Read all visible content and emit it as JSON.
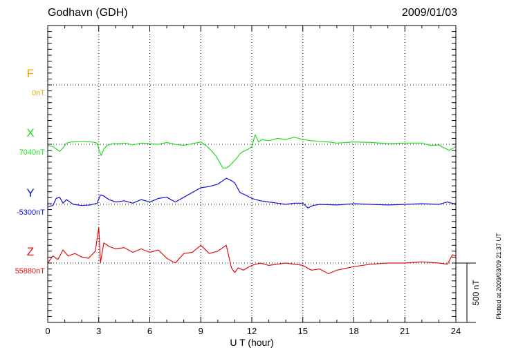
{
  "header": {
    "station": "Godhavn (GDH)",
    "date": "2009/01/03"
  },
  "footer": {
    "plotted": "Plotted at 2009/03/09 21:37 UT"
  },
  "chart_data": {
    "type": "line",
    "xlabel": "U T (hour)",
    "xlim": [
      0,
      24
    ],
    "xticks": [
      "0",
      "3",
      "6",
      "9",
      "12",
      "15",
      "18",
      "21",
      "24"
    ],
    "scale_bar": {
      "label": "500 nT",
      "value_nT": 500
    },
    "grid": true,
    "series": [
      {
        "name": "F",
        "baseline_label": "0nT",
        "color": "#f0a800",
        "values": []
      },
      {
        "name": "X",
        "baseline_label": "7040nT",
        "color": "#22dd22",
        "x": [
          0,
          0.3,
          0.5,
          0.7,
          0.9,
          1.1,
          1.4,
          1.8,
          2.2,
          2.6,
          2.9,
          3.05,
          3.15,
          3.3,
          3.5,
          3.8,
          4.2,
          4.6,
          5.0,
          5.5,
          6.0,
          6.5,
          7.0,
          7.5,
          8.0,
          8.5,
          9.0,
          9.3,
          9.6,
          9.9,
          10.1,
          10.3,
          10.5,
          10.7,
          10.9,
          11.1,
          11.3,
          11.5,
          11.8,
          12.0,
          12.2,
          12.4,
          12.6,
          13.0,
          13.5,
          14.0,
          14.5,
          15.0,
          15.5,
          16.0,
          16.5,
          17.0,
          18.0,
          19.0,
          20.0,
          21.0,
          22.0,
          22.5,
          23.0,
          23.3,
          23.6,
          24.0
        ],
        "y": [
          -10,
          -20,
          -40,
          -60,
          -30,
          10,
          20,
          25,
          25,
          20,
          10,
          -60,
          -95,
          -40,
          -10,
          5,
          5,
          10,
          -5,
          10,
          5,
          0,
          15,
          0,
          -10,
          5,
          20,
          -10,
          -50,
          -100,
          -150,
          -200,
          -200,
          -180,
          -150,
          -120,
          -80,
          -60,
          -40,
          -20,
          80,
          20,
          40,
          30,
          50,
          40,
          60,
          40,
          30,
          25,
          20,
          10,
          20,
          15,
          5,
          10,
          10,
          -10,
          -5,
          -30,
          -50,
          -20
        ]
      },
      {
        "name": "Y",
        "baseline_label": "-5300nT",
        "color": "#1010dd",
        "x": [
          0,
          0.3,
          0.5,
          0.7,
          0.9,
          1.1,
          1.5,
          2.0,
          2.5,
          2.9,
          3.1,
          3.3,
          3.6,
          4.0,
          4.5,
          5.0,
          5.5,
          6.0,
          6.5,
          7.0,
          7.5,
          8.0,
          8.5,
          9.0,
          9.5,
          10.0,
          10.5,
          10.8,
          11.0,
          11.3,
          11.6,
          12.0,
          12.5,
          13.0,
          13.5,
          14.0,
          14.5,
          15.0,
          15.3,
          15.6,
          16.0,
          17.0,
          18.0,
          19.0,
          20.0,
          21.0,
          22.0,
          23.0,
          23.5,
          24.0
        ],
        "y": [
          -20,
          -10,
          50,
          60,
          10,
          40,
          0,
          -10,
          -5,
          10,
          80,
          70,
          40,
          20,
          30,
          10,
          40,
          20,
          50,
          60,
          20,
          60,
          100,
          140,
          150,
          170,
          220,
          200,
          180,
          100,
          80,
          50,
          30,
          20,
          10,
          0,
          10,
          10,
          -30,
          -10,
          0,
          -5,
          5,
          0,
          -5,
          0,
          5,
          0,
          20,
          0
        ]
      },
      {
        "name": "Z",
        "baseline_label": "55880nT",
        "color": "#dd1010",
        "x": [
          0,
          0.3,
          0.6,
          0.9,
          1.2,
          1.6,
          2.0,
          2.4,
          2.8,
          3.0,
          3.1,
          3.3,
          3.6,
          4.0,
          4.5,
          5.0,
          5.5,
          6.0,
          6.5,
          7.0,
          7.5,
          8.0,
          8.5,
          9.0,
          9.5,
          10.0,
          10.5,
          10.8,
          11.0,
          11.2,
          11.5,
          12.0,
          12.5,
          13.0,
          14.0,
          15.0,
          15.5,
          16.0,
          16.5,
          17.0,
          18.0,
          19.0,
          20.0,
          21.0,
          22.0,
          23.0,
          23.5,
          23.8,
          24.0
        ],
        "y": [
          0,
          60,
          30,
          110,
          60,
          80,
          50,
          40,
          100,
          300,
          0,
          170,
          140,
          120,
          130,
          90,
          120,
          90,
          110,
          40,
          0,
          80,
          90,
          150,
          80,
          100,
          150,
          -40,
          -80,
          -40,
          -60,
          -20,
          0,
          -20,
          0,
          -20,
          -60,
          -50,
          -90,
          -60,
          -30,
          -10,
          0,
          0,
          10,
          0,
          -10,
          70,
          60
        ]
      }
    ]
  }
}
